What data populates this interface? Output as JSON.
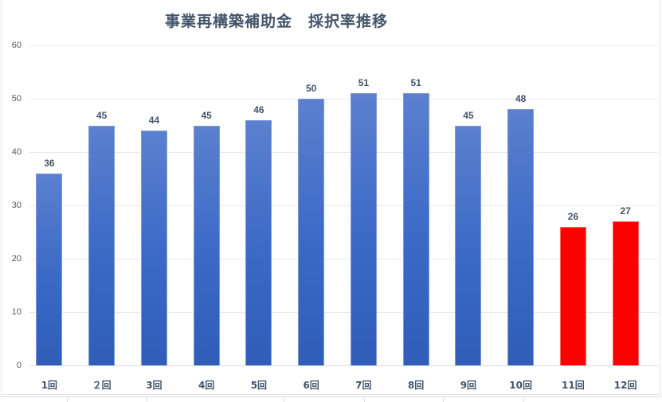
{
  "title": "事業再構築補助金　採択率推移",
  "colors": {
    "bar_blue_top": "#5b80cf",
    "bar_blue_bottom": "#2f5db8",
    "bar_red": "#ff0000",
    "text": "#44546a",
    "grid": "#e6e8ec"
  },
  "y_ticks": [
    "0",
    "10",
    "20",
    "30",
    "40",
    "50",
    "60"
  ],
  "chart_data": {
    "type": "bar",
    "title": "事業再構築補助金　採択率推移",
    "xlabel": "",
    "ylabel": "",
    "ylim": [
      0,
      60
    ],
    "y_tick_step": 10,
    "grid": true,
    "legend": null,
    "data_labels": true,
    "categories": [
      "1回",
      "２回",
      "3回",
      "4回",
      "5回",
      "6回",
      "7回",
      "8回",
      "9回",
      "10回",
      "11回",
      "12回"
    ],
    "values": [
      36,
      45,
      44,
      45,
      46,
      50,
      51,
      51,
      45,
      48,
      26,
      27
    ],
    "bar_colors": [
      "blue",
      "blue",
      "blue",
      "blue",
      "blue",
      "blue",
      "blue",
      "blue",
      "blue",
      "blue",
      "red",
      "red"
    ],
    "value_labels": [
      "36",
      "45",
      "44",
      "45",
      "46",
      "50",
      "51",
      "51",
      "45",
      "48",
      "26",
      "27"
    ]
  }
}
